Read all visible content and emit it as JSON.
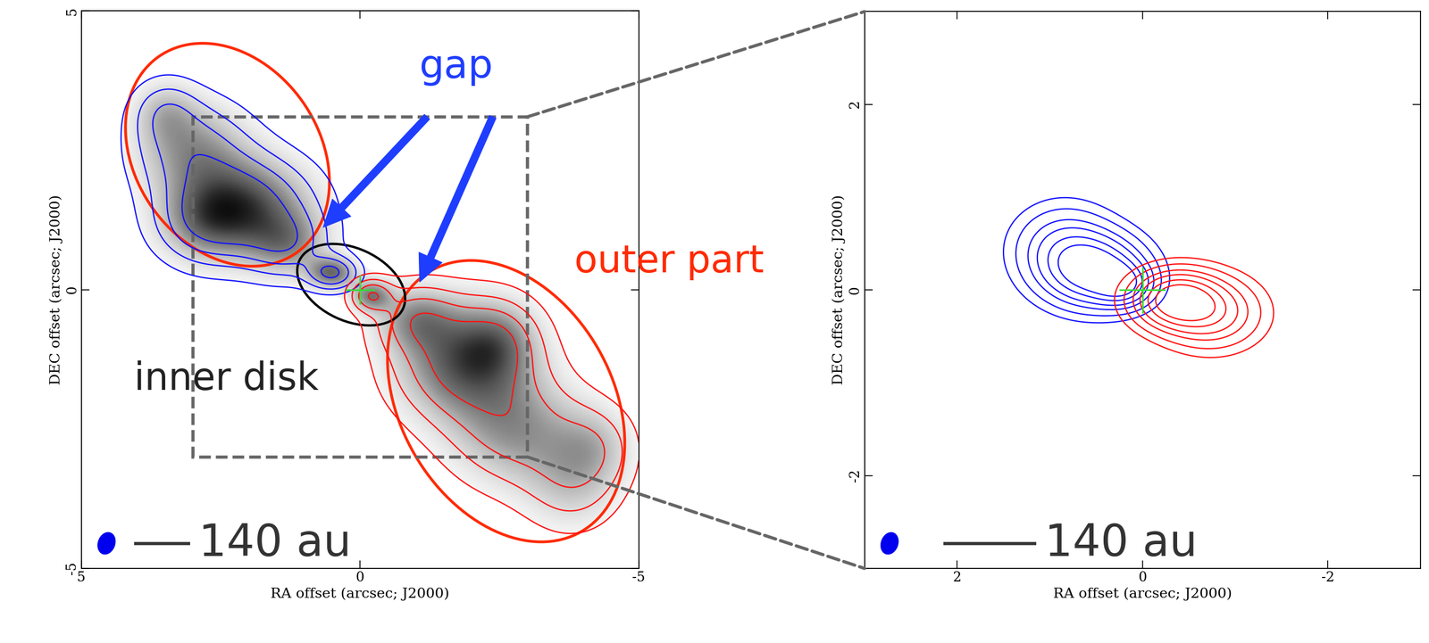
{
  "chart_data": [
    {
      "type": "contour",
      "xlabel": "RA offset (arcsec; J2000)",
      "ylabel": "DEC offset (arcsec; J2000)",
      "xlim": [
        5,
        -5
      ],
      "ylim": [
        -5,
        5
      ],
      "xticks": [
        5,
        0,
        -5
      ],
      "yticks": [
        -5,
        0,
        5
      ],
      "annotations": [
        {
          "text": "gap",
          "color": "#1f3dff"
        },
        {
          "text": "outer part",
          "color": "#ff2a00"
        },
        {
          "text": "inner disk",
          "color": "#222222"
        }
      ],
      "scale_bar": {
        "label": "140 au",
        "length": 1
      },
      "levels": [
        0.15,
        0.35,
        0.6,
        0.9
      ],
      "series": [
        {
          "type": "image",
          "color": "gray"
        },
        {
          "type": "contour",
          "color": "#1010ff",
          "components": [
            {
              "x": 2.0,
              "y": 1.5,
              "sx": 0.8,
              "sy": 0.6,
              "amp": 1.0
            },
            {
              "x": 3.0,
              "y": 2.5,
              "sx": 0.7,
              "sy": 0.6,
              "amp": 0.7
            },
            {
              "x": 1.3,
              "y": 0.8,
              "sx": 0.5,
              "sy": 0.4,
              "amp": 0.6
            },
            {
              "x": 2.8,
              "y": 1.2,
              "sx": 0.6,
              "sy": 0.5,
              "amp": 0.6
            },
            {
              "x": 0.5,
              "y": 0.3,
              "sx": 0.3,
              "sy": 0.2,
              "amp": 0.9
            },
            {
              "x": 3.5,
              "y": 3.2,
              "sx": 0.4,
              "sy": 0.4,
              "amp": 0.4
            }
          ]
        },
        {
          "type": "contour",
          "color": "#ff1010",
          "components": [
            {
              "x": -1.8,
              "y": -1.3,
              "sx": 0.8,
              "sy": 0.7,
              "amp": 1.0
            },
            {
              "x": -2.8,
              "y": -2.5,
              "sx": 0.8,
              "sy": 0.7,
              "amp": 0.7
            },
            {
              "x": -3.8,
              "y": -3.5,
              "sx": 0.6,
              "sy": 0.6,
              "amp": 0.4
            },
            {
              "x": -1.0,
              "y": -0.5,
              "sx": 0.5,
              "sy": 0.4,
              "amp": 0.6
            },
            {
              "x": -0.2,
              "y": -0.1,
              "sx": 0.25,
              "sy": 0.2,
              "amp": 0.8
            },
            {
              "x": -2.5,
              "y": -0.9,
              "sx": 0.5,
              "sy": 0.5,
              "amp": 0.5
            },
            {
              "x": -4.2,
              "y": -2.8,
              "sx": 0.5,
              "sy": 0.5,
              "amp": 0.4
            }
          ]
        }
      ]
    },
    {
      "type": "contour",
      "xlabel": "RA offset (arcsec; J2000)",
      "ylabel": "DEC offset (arcsec; J2000)",
      "xlim": [
        3,
        -3
      ],
      "ylim": [
        -3,
        3
      ],
      "xticks": [
        2,
        0,
        -2
      ],
      "yticks": [
        -2,
        0,
        2
      ],
      "scale_bar": {
        "label": "140 au",
        "length": 1
      },
      "levels": [
        0.1,
        0.2,
        0.35,
        0.5,
        0.7,
        0.9
      ],
      "series": [
        {
          "type": "contour",
          "color": "#1010ff",
          "components": [
            {
              "x": 0.5,
              "y": 0.2,
              "sx": 0.35,
              "sy": 0.25,
              "amp": 1.0
            },
            {
              "x": 0.85,
              "y": 0.45,
              "sx": 0.35,
              "sy": 0.3,
              "amp": 0.5
            },
            {
              "x": 0.2,
              "y": 0.05,
              "sx": 0.2,
              "sy": 0.15,
              "amp": 0.6
            }
          ]
        },
        {
          "type": "contour",
          "color": "#ff1010",
          "components": [
            {
              "x": -0.35,
              "y": -0.1,
              "sx": 0.3,
              "sy": 0.2,
              "amp": 1.0
            },
            {
              "x": -0.75,
              "y": -0.25,
              "sx": 0.35,
              "sy": 0.25,
              "amp": 0.6
            }
          ]
        }
      ]
    }
  ]
}
